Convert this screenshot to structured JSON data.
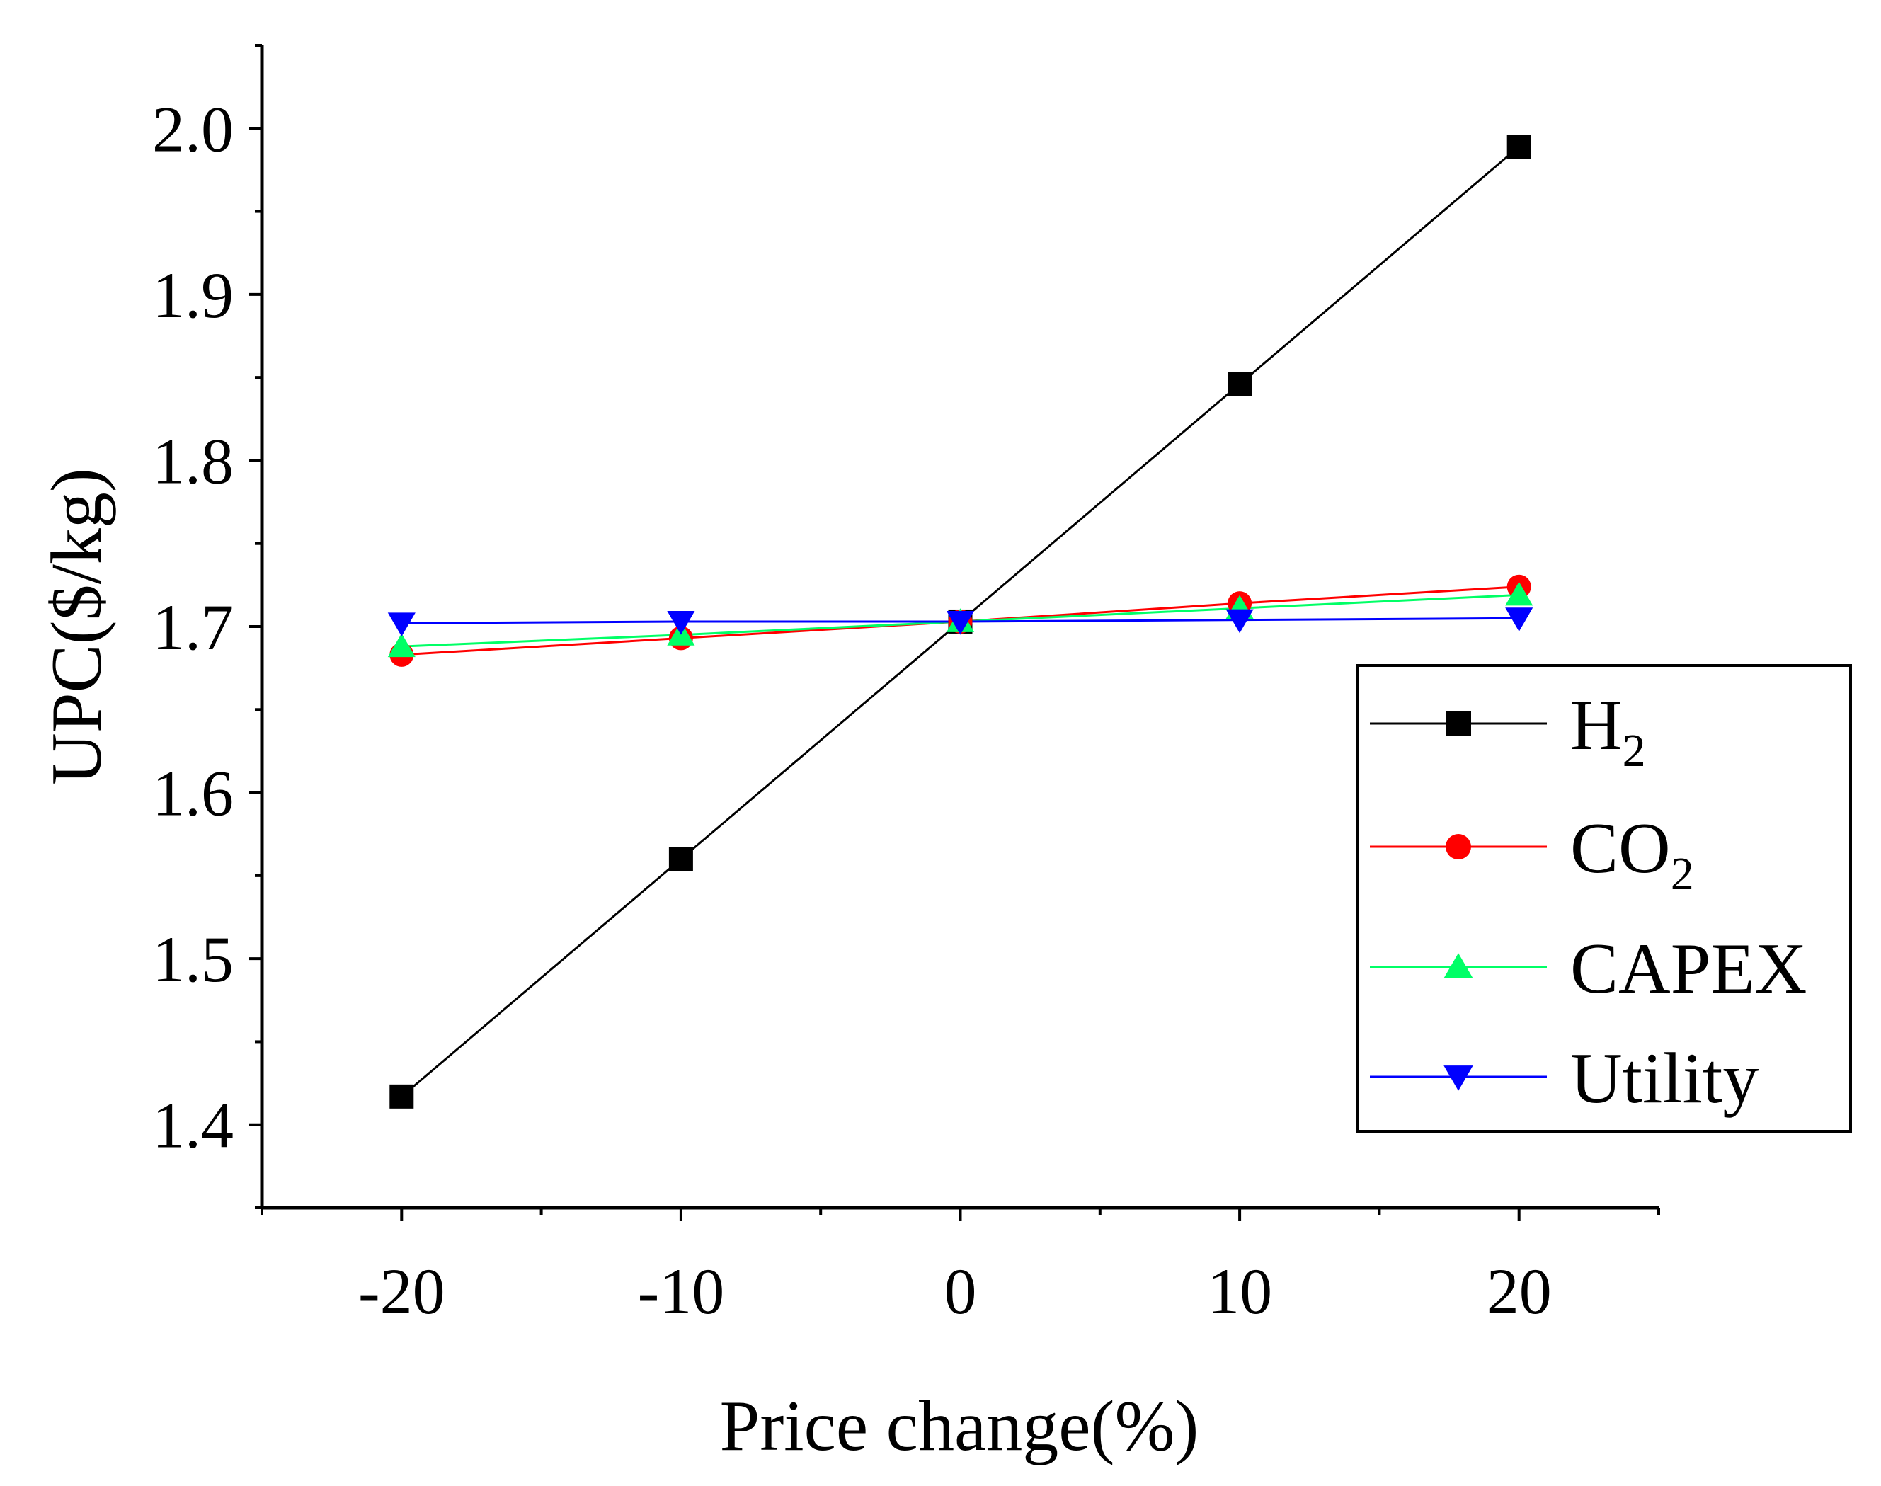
{
  "chart_data": {
    "type": "line",
    "xlabel": "Price change(%)",
    "ylabel": "UPC($/kg)",
    "x": [
      -20,
      -10,
      0,
      10,
      20
    ],
    "xlim": [
      -25,
      25
    ],
    "ylim": [
      1.35,
      2.05
    ],
    "xticks": [
      "-20",
      "-10",
      "0",
      "10",
      "20"
    ],
    "yticks": [
      "1.4",
      "1.5",
      "1.6",
      "1.7",
      "1.8",
      "1.9",
      "2.0"
    ],
    "legend_position": "right-middle",
    "series": [
      {
        "name": "H",
        "subscript": "2",
        "color": "#000000",
        "marker": "square",
        "values": [
          1.417,
          1.56,
          1.703,
          1.846,
          1.989
        ]
      },
      {
        "name": "CO",
        "subscript": "2",
        "color": "#ff0000",
        "marker": "circle",
        "values": [
          1.683,
          1.693,
          1.703,
          1.714,
          1.724
        ]
      },
      {
        "name": "CAPEX",
        "subscript": "",
        "color": "#00ff66",
        "marker": "triangle-up",
        "values": [
          1.688,
          1.695,
          1.703,
          1.711,
          1.719
        ]
      },
      {
        "name": "Utility",
        "subscript": "",
        "color": "#0000ff",
        "marker": "triangle-down",
        "values": [
          1.702,
          1.703,
          1.703,
          1.704,
          1.705
        ]
      }
    ]
  }
}
